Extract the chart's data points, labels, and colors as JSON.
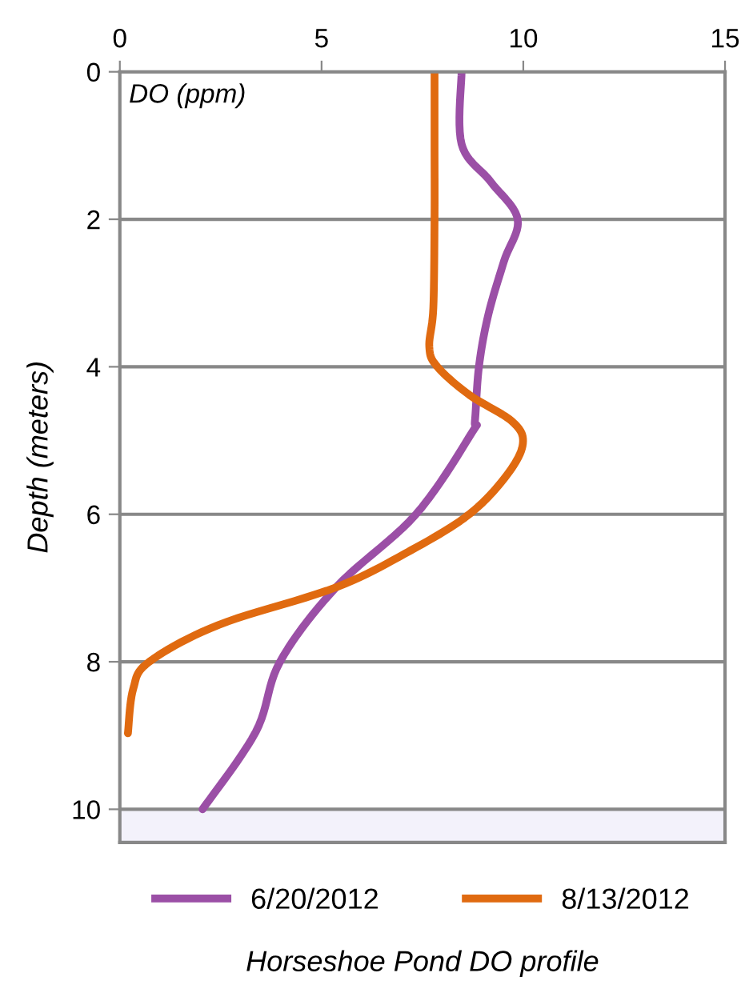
{
  "chart_data": {
    "type": "line",
    "title": "Horseshoe Pond DO profile",
    "ylabel": "Depth (meters)",
    "annotations": [
      "DO (ppm)"
    ],
    "orientation": "horizontal",
    "xlim": [
      0,
      15
    ],
    "xticks": [
      0,
      5,
      10,
      15
    ],
    "ylim": [
      10.45,
      0
    ],
    "yticks": [
      0,
      2,
      4,
      6,
      8,
      10
    ],
    "grid": "y",
    "legend": "bottom",
    "bands": [
      {
        "axis": "y",
        "from": 10,
        "to": 10.45,
        "label": null,
        "color": "#f3f2fb"
      }
    ],
    "series": [
      {
        "name": "6/20/2012",
        "color": "#9b4fa6",
        "x": [
          0,
          0.98,
          1.49,
          2.0,
          2.57,
          3.3,
          4.0,
          4.74,
          4.89,
          6.0,
          6.99,
          8.0,
          8.95,
          10.0
        ],
        "values": [
          8.47,
          8.47,
          9.19,
          9.86,
          9.52,
          9.13,
          8.9,
          8.8,
          8.73,
          7.34,
          5.36,
          3.97,
          3.37,
          2.05
        ]
      },
      {
        "name": "8/13/2012",
        "color": "#e06a10",
        "x": [
          0,
          1.0,
          2.0,
          3.2,
          3.73,
          4.0,
          4.38,
          4.74,
          5.04,
          5.47,
          6.0,
          6.49,
          6.99,
          7.5,
          8.0,
          8.37,
          8.97
        ],
        "values": [
          7.8,
          7.8,
          7.8,
          7.77,
          7.67,
          7.87,
          8.66,
          9.72,
          9.99,
          9.59,
          8.66,
          7.21,
          5.36,
          2.45,
          0.73,
          0.33,
          0.2
        ]
      }
    ]
  }
}
